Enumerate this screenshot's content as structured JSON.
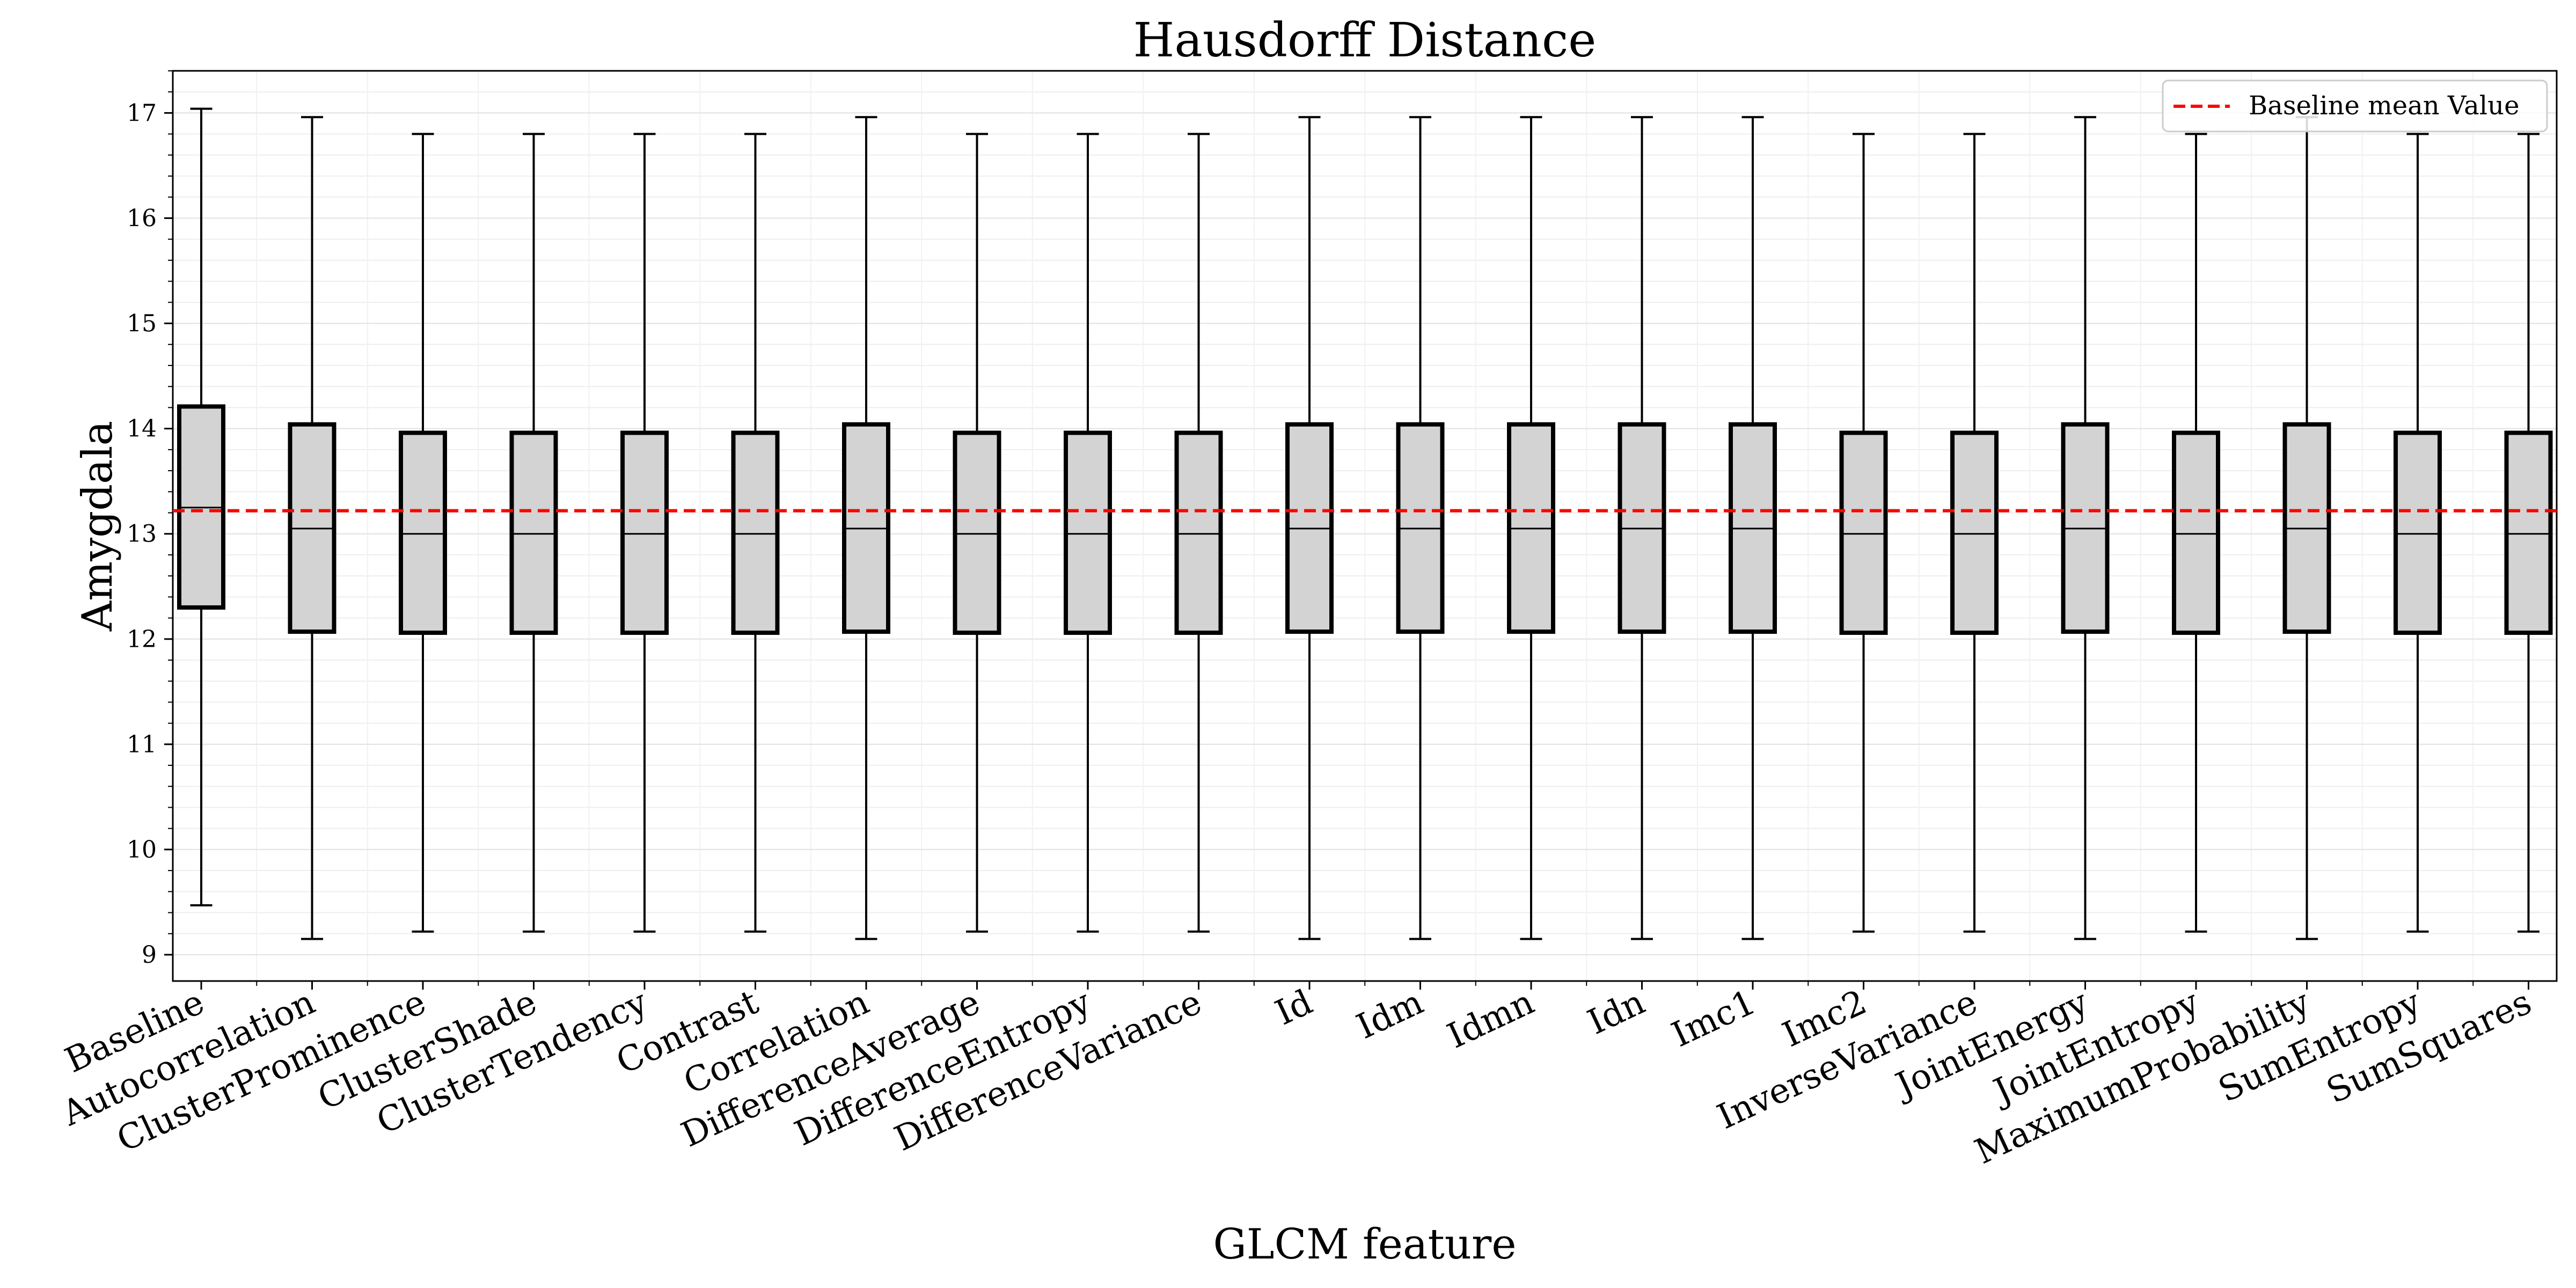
{
  "chart_data": {
    "type": "box",
    "title": "Hausdorff Distance",
    "xlabel": "GLCM feature",
    "ylabel": "Amygdala",
    "ylim": [
      8.75,
      17.4
    ],
    "yticks": [
      9,
      10,
      11,
      12,
      13,
      14,
      15,
      16,
      17
    ],
    "grid": true,
    "legend": {
      "position": "top-right",
      "entries": [
        "Baseline mean Value"
      ]
    },
    "reference_line": {
      "name": "Baseline mean Value",
      "value": 13.22,
      "color": "#ff0000",
      "style": "dashed"
    },
    "categories": [
      "Baseline",
      "Autocorrelation",
      "ClusterProminence",
      "ClusterShade",
      "ClusterTendency",
      "Contrast",
      "Correlation",
      "DifferenceAverage",
      "DifferenceEntropy",
      "DifferenceVariance",
      "Id",
      "Idm",
      "Idmn",
      "Idn",
      "Imc1",
      "Imc2",
      "InverseVariance",
      "JointEnergy",
      "JointEntropy",
      "MaximumProbability",
      "SumEntropy",
      "SumSquares"
    ],
    "boxes": [
      {
        "whisker_low": 9.47,
        "q1": 12.3,
        "median": 13.25,
        "q3": 14.21,
        "whisker_high": 17.04
      },
      {
        "whisker_low": 9.15,
        "q1": 12.07,
        "median": 13.05,
        "q3": 14.04,
        "whisker_high": 16.96
      },
      {
        "whisker_low": 9.22,
        "q1": 12.06,
        "median": 13.0,
        "q3": 13.96,
        "whisker_high": 16.8
      },
      {
        "whisker_low": 9.22,
        "q1": 12.06,
        "median": 13.0,
        "q3": 13.96,
        "whisker_high": 16.8
      },
      {
        "whisker_low": 9.22,
        "q1": 12.06,
        "median": 13.0,
        "q3": 13.96,
        "whisker_high": 16.8
      },
      {
        "whisker_low": 9.22,
        "q1": 12.06,
        "median": 13.0,
        "q3": 13.96,
        "whisker_high": 16.8
      },
      {
        "whisker_low": 9.15,
        "q1": 12.07,
        "median": 13.05,
        "q3": 14.04,
        "whisker_high": 16.96
      },
      {
        "whisker_low": 9.22,
        "q1": 12.06,
        "median": 13.0,
        "q3": 13.96,
        "whisker_high": 16.8
      },
      {
        "whisker_low": 9.22,
        "q1": 12.06,
        "median": 13.0,
        "q3": 13.96,
        "whisker_high": 16.8
      },
      {
        "whisker_low": 9.22,
        "q1": 12.06,
        "median": 13.0,
        "q3": 13.96,
        "whisker_high": 16.8
      },
      {
        "whisker_low": 9.15,
        "q1": 12.07,
        "median": 13.05,
        "q3": 14.04,
        "whisker_high": 16.96
      },
      {
        "whisker_low": 9.15,
        "q1": 12.07,
        "median": 13.05,
        "q3": 14.04,
        "whisker_high": 16.96
      },
      {
        "whisker_low": 9.15,
        "q1": 12.07,
        "median": 13.05,
        "q3": 14.04,
        "whisker_high": 16.96
      },
      {
        "whisker_low": 9.15,
        "q1": 12.07,
        "median": 13.05,
        "q3": 14.04,
        "whisker_high": 16.96
      },
      {
        "whisker_low": 9.15,
        "q1": 12.07,
        "median": 13.05,
        "q3": 14.04,
        "whisker_high": 16.96
      },
      {
        "whisker_low": 9.22,
        "q1": 12.06,
        "median": 13.0,
        "q3": 13.96,
        "whisker_high": 16.8
      },
      {
        "whisker_low": 9.22,
        "q1": 12.06,
        "median": 13.0,
        "q3": 13.96,
        "whisker_high": 16.8
      },
      {
        "whisker_low": 9.15,
        "q1": 12.07,
        "median": 13.05,
        "q3": 14.04,
        "whisker_high": 16.96
      },
      {
        "whisker_low": 9.22,
        "q1": 12.06,
        "median": 13.0,
        "q3": 13.96,
        "whisker_high": 16.8
      },
      {
        "whisker_low": 9.15,
        "q1": 12.07,
        "median": 13.05,
        "q3": 14.04,
        "whisker_high": 16.96
      },
      {
        "whisker_low": 9.22,
        "q1": 12.06,
        "median": 13.0,
        "q3": 13.96,
        "whisker_high": 16.8
      },
      {
        "whisker_low": 9.22,
        "q1": 12.06,
        "median": 13.0,
        "q3": 13.96,
        "whisker_high": 16.8
      }
    ],
    "box_fill": "#d3d3d3"
  }
}
